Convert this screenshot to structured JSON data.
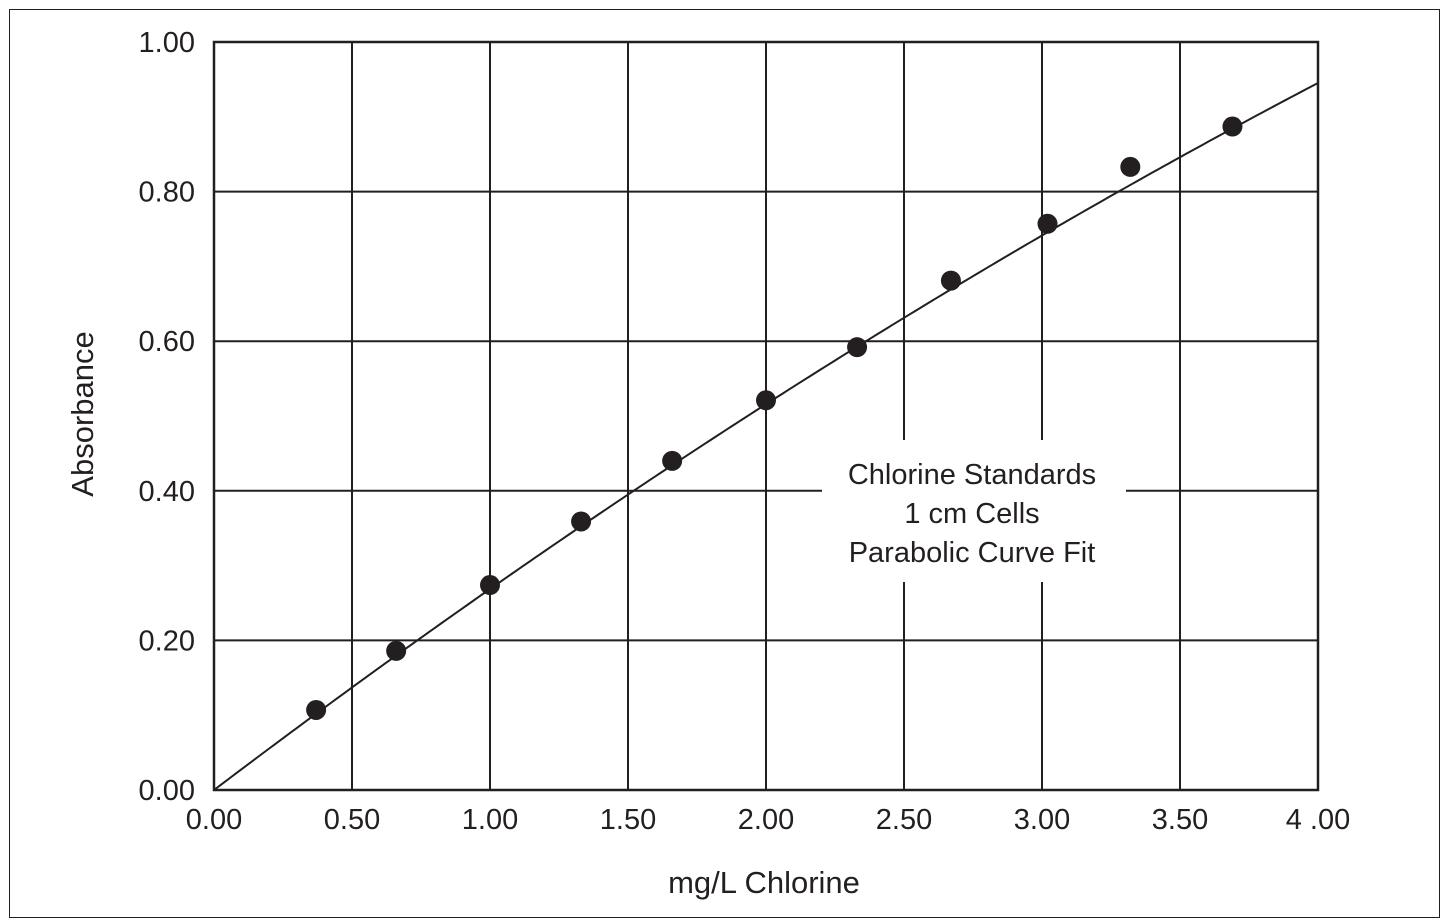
{
  "chart_data": {
    "type": "scatter",
    "xlabel": "mg/L Chlorine",
    "ylabel": "Absorbance",
    "xlim": [
      0,
      4
    ],
    "ylim": [
      0,
      1
    ],
    "grid": true,
    "x_ticks": [
      {
        "value": 0,
        "label": "0.00"
      },
      {
        "value": 0.5,
        "label": "0.50"
      },
      {
        "value": 1,
        "label": "1.00"
      },
      {
        "value": 1.5,
        "label": "1.50"
      },
      {
        "value": 2,
        "label": "2.00"
      },
      {
        "value": 2.5,
        "label": "2.50"
      },
      {
        "value": 3,
        "label": "3.00"
      },
      {
        "value": 3.5,
        "label": "3.50"
      },
      {
        "value": 4,
        "label": "4 .00"
      }
    ],
    "y_ticks": [
      {
        "value": 0,
        "label": "0.00"
      },
      {
        "value": 0.2,
        "label": "0.20"
      },
      {
        "value": 0.4,
        "label": "0.40"
      },
      {
        "value": 0.6,
        "label": "0.60"
      },
      {
        "value": 0.8,
        "label": "0.80"
      },
      {
        "value": 1,
        "label": "1.00"
      }
    ],
    "points": [
      {
        "x": 0.37,
        "y": 0.107
      },
      {
        "x": 0.66,
        "y": 0.186
      },
      {
        "x": 1.0,
        "y": 0.274
      },
      {
        "x": 1.33,
        "y": 0.359
      },
      {
        "x": 1.66,
        "y": 0.44
      },
      {
        "x": 2.0,
        "y": 0.521
      },
      {
        "x": 2.33,
        "y": 0.592
      },
      {
        "x": 2.67,
        "y": 0.681
      },
      {
        "x": 3.02,
        "y": 0.757
      },
      {
        "x": 3.32,
        "y": 0.833
      },
      {
        "x": 3.69,
        "y": 0.887
      }
    ],
    "fit": {
      "type": "parabolic",
      "a": -0.0108,
      "b": 0.2795,
      "c": 0
    },
    "annotation": [
      "Chlorine Standards",
      "1 cm Cells",
      "Parabolic Curve Fit"
    ],
    "colors": {
      "ink": "#231f20",
      "background": "#ffffff"
    }
  }
}
